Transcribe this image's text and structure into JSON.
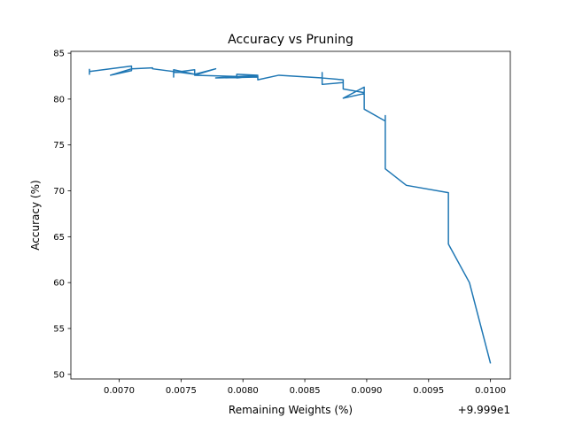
{
  "chart_data": {
    "type": "line",
    "title": "Accuracy vs Pruning",
    "xlabel": "Remaining Weights (%)",
    "ylabel": "Accuracy (%)",
    "x_offset_label": "+9.999e1",
    "xlim": [
      0.00661,
      0.01016
    ],
    "ylim": [
      49.5,
      85.2
    ],
    "x_ticks": [
      0.007,
      0.0075,
      0.008,
      0.0085,
      0.009,
      0.0095,
      0.01
    ],
    "x_tick_labels": [
      "0.0070",
      "0.0075",
      "0.0080",
      "0.0085",
      "0.0090",
      "0.0095",
      "0.0100"
    ],
    "y_ticks": [
      50,
      55,
      60,
      65,
      70,
      75,
      80,
      85
    ],
    "y_tick_labels": [
      "50",
      "55",
      "60",
      "65",
      "70",
      "75",
      "80",
      "85"
    ],
    "grid": false,
    "line_color": "#1f77b4",
    "series": [
      {
        "x": [
          0.01,
          0.00983,
          0.00966,
          0.00966,
          0.00932,
          0.00915,
          0.00915,
          0.00915,
          0.00898,
          0.00898,
          0.00898,
          0.00881,
          0.00898,
          0.00898,
          0.00881,
          0.00881,
          0.00864,
          0.00881,
          0.00881,
          0.00864,
          0.00864,
          0.00864,
          0.00829,
          0.00812,
          0.00812,
          0.00795,
          0.00795,
          0.00812,
          0.00778,
          0.00812,
          0.00761,
          0.00778,
          0.00761,
          0.00761,
          0.00744,
          0.00744,
          0.00744,
          0.00761,
          0.00727,
          0.00727,
          0.0071,
          0.00693,
          0.0071,
          0.0071,
          0.00676,
          0.00676,
          0.00676
        ],
        "y": [
          51.2,
          60.0,
          64.2,
          69.8,
          70.6,
          72.4,
          78.2,
          77.6,
          78.9,
          79.8,
          80.6,
          80.1,
          81.3,
          80.7,
          81.1,
          82.1,
          82.3,
          82.1,
          81.8,
          81.6,
          82.9,
          82.3,
          82.6,
          82.1,
          82.5,
          82.3,
          82.7,
          82.6,
          82.3,
          82.4,
          82.6,
          83.3,
          82.7,
          83.2,
          82.9,
          82.4,
          83.2,
          82.7,
          83.3,
          83.4,
          83.3,
          82.6,
          83.1,
          83.6,
          83.0,
          82.7,
          83.3
        ]
      }
    ]
  }
}
